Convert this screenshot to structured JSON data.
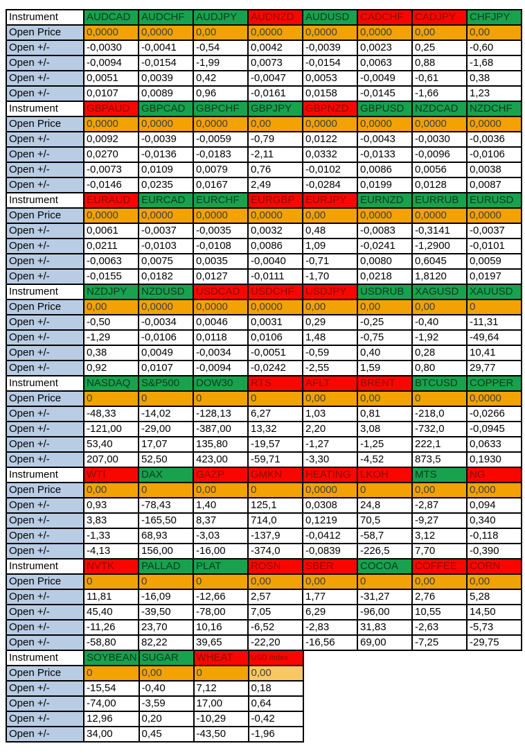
{
  "labels": {
    "instrument": "Instrument",
    "open_price": "Open Price",
    "open_change": "Open +/-"
  },
  "colors": {
    "green_bg": "#18A24D",
    "green_text": "#0C3A20",
    "red_bg": "#FA0600",
    "red_text": "#8A0E00",
    "orange_bg": "#F2A202",
    "orange_light_bg": "#FAC861",
    "label_blue_bg": "#B8CCE4",
    "border": "#000000"
  },
  "blocks": [
    {
      "headers": [
        {
          "label": "AUDCAD",
          "color": "g"
        },
        {
          "label": "AUDCHF",
          "color": "g"
        },
        {
          "label": "AUDJPY",
          "color": "g"
        },
        {
          "label": "AUDNZD",
          "color": "r"
        },
        {
          "label": "AUDUSD",
          "color": "g"
        },
        {
          "label": "CADCHF",
          "color": "r"
        },
        {
          "label": "CADJPY",
          "color": "r"
        },
        {
          "label": "CHFJPY",
          "color": "g"
        }
      ],
      "open": [
        "0,0000",
        "0,0000",
        "0,00",
        "0,0000",
        "0,0000",
        "0,0000",
        "0,00",
        "0,00"
      ],
      "open_light": [],
      "rows": [
        [
          "-0,0030",
          "-0,0041",
          "-0,54",
          "0,0042",
          "-0,0039",
          "0,0023",
          "0,25",
          "-0,60"
        ],
        [
          "-0,0094",
          "-0,0154",
          "-1,99",
          "0,0073",
          "-0,0154",
          "0,0063",
          "0,88",
          "-1,68"
        ],
        [
          "0,0051",
          "0,0039",
          "0,42",
          "-0,0047",
          "0,0053",
          "-0,0049",
          "-0,61",
          "0,38"
        ],
        [
          "0,0107",
          "0,0089",
          "0,96",
          "-0,0161",
          "0,0158",
          "-0,0145",
          "-1,66",
          "1,23"
        ]
      ]
    },
    {
      "headers": [
        {
          "label": "GBPAUD",
          "color": "r"
        },
        {
          "label": "GBPCAD",
          "color": "g"
        },
        {
          "label": "GBPCHF",
          "color": "g"
        },
        {
          "label": "GBPJPY",
          "color": "g"
        },
        {
          "label": "GBPNZD",
          "color": "r"
        },
        {
          "label": "GBPUSD",
          "color": "g"
        },
        {
          "label": "NZDCAD",
          "color": "g"
        },
        {
          "label": "NZDCHF",
          "color": "g"
        }
      ],
      "open": [
        "0,0000",
        "0,0000",
        "0,0000",
        "0,00",
        "0,0000",
        "0,0000",
        "0,0000",
        "0,0000"
      ],
      "open_light": [],
      "rows": [
        [
          "0,0092",
          "-0,0039",
          "-0,0059",
          "-0,79",
          "0,0122",
          "-0,0043",
          "-0,0030",
          "-0,0036"
        ],
        [
          "0,0270",
          "-0,0136",
          "-0,0183",
          "-2,11",
          "0,0332",
          "-0,0133",
          "-0,0096",
          "-0,0106"
        ],
        [
          "-0,0073",
          "0,0109",
          "0,0079",
          "0,76",
          "-0,0102",
          "0,0086",
          "0,0056",
          "0,0038"
        ],
        [
          "-0,0146",
          "0,0235",
          "0,0167",
          "2,49",
          "-0,0284",
          "0,0199",
          "0,0128",
          "0,0087"
        ]
      ]
    },
    {
      "headers": [
        {
          "label": "EURAUD",
          "color": "r"
        },
        {
          "label": "EURCAD",
          "color": "g"
        },
        {
          "label": "EURCHF",
          "color": "g"
        },
        {
          "label": "EURGBP",
          "color": "r"
        },
        {
          "label": "EURJPY",
          "color": "r"
        },
        {
          "label": "EURNZD",
          "color": "g"
        },
        {
          "label": "EURRUB",
          "color": "g"
        },
        {
          "label": "EURUSD",
          "color": "g"
        }
      ],
      "open": [
        "0,0000",
        "0,0000",
        "0,0000",
        "0,0000",
        "0,00",
        "0,0000",
        "0,0000",
        "0,0000"
      ],
      "open_light": [],
      "rows": [
        [
          "0,0061",
          "-0,0037",
          "-0,0035",
          "0,0032",
          "0,48",
          "-0,0083",
          "-0,3141",
          "-0,0037"
        ],
        [
          "0,0211",
          "-0,0103",
          "-0,0108",
          "0,0086",
          "1,09",
          "-0,0241",
          "-1,2900",
          "-0,0101"
        ],
        [
          "-0,0063",
          "0,0075",
          "0,0035",
          "-0,0040",
          "-0,71",
          "0,0080",
          "0,6045",
          "0,0059"
        ],
        [
          "-0,0155",
          "0,0182",
          "0,0127",
          "-0,0111",
          "-1,70",
          "0,0218",
          "1,8120",
          "0,0197"
        ]
      ]
    },
    {
      "headers": [
        {
          "label": "NZDJPY",
          "color": "g"
        },
        {
          "label": "NZDUSD",
          "color": "g"
        },
        {
          "label": "USDCAD",
          "color": "r"
        },
        {
          "label": "USDCHF",
          "color": "r"
        },
        {
          "label": "USDJPY",
          "color": "r"
        },
        {
          "label": "USDRUB",
          "color": "g"
        },
        {
          "label": "XAGUSD",
          "color": "g"
        },
        {
          "label": "XAUUSD",
          "color": "g"
        }
      ],
      "open": [
        "0,00",
        "0,0000",
        "0,0000",
        "0,0000",
        "0,00",
        "0,00",
        "0,00",
        "0"
      ],
      "open_light": [],
      "rows": [
        [
          "-0,50",
          "-0,0034",
          "0,0046",
          "0,0031",
          "0,29",
          "-0,25",
          "-0,40",
          "-11,31"
        ],
        [
          "-1,29",
          "-0,0106",
          "0,0118",
          "0,0106",
          "1,48",
          "-0,75",
          "-1,92",
          "-49,64"
        ],
        [
          "0,38",
          "0,0049",
          "-0,0034",
          "-0,0051",
          "-0,59",
          "0,40",
          "0,28",
          "10,41"
        ],
        [
          "0,92",
          "0,0107",
          "-0,0094",
          "-0,0242",
          "-2,55",
          "1,59",
          "0,80",
          "29,77"
        ]
      ]
    },
    {
      "headers": [
        {
          "label": "NASDAQ",
          "color": "g"
        },
        {
          "label": "S&P500",
          "color": "g"
        },
        {
          "label": "DOW30",
          "color": "g"
        },
        {
          "label": "RTS",
          "color": "r"
        },
        {
          "label": "AFLT",
          "color": "r"
        },
        {
          "label": "BRENT",
          "color": "r"
        },
        {
          "label": "BTCUSD",
          "color": "g"
        },
        {
          "label": "COPPER",
          "color": "g"
        }
      ],
      "open": [
        "0",
        "0",
        "0",
        "0",
        "0,00",
        "0,00",
        "0",
        "0,0000"
      ],
      "open_light": [],
      "rows": [
        [
          "-48,33",
          "-14,02",
          "-128,13",
          "6,27",
          "1,03",
          "0,81",
          "-218,0",
          "-0,0266"
        ],
        [
          "-121,00",
          "-29,00",
          "-387,00",
          "13,32",
          "2,20",
          "3,08",
          "-732,0",
          "-0,0945"
        ],
        [
          "53,40",
          "17,07",
          "135,80",
          "-19,57",
          "-1,27",
          "-1,25",
          "222,1",
          "0,0633"
        ],
        [
          "207,00",
          "52,50",
          "423,00",
          "-59,71",
          "-3,30",
          "-4,52",
          "873,5",
          "0,1930"
        ]
      ]
    },
    {
      "headers": [
        {
          "label": "WTI",
          "color": "r"
        },
        {
          "label": "DAX",
          "color": "g"
        },
        {
          "label": "GAZP",
          "color": "r"
        },
        {
          "label": "GMKN",
          "color": "r"
        },
        {
          "label": "HEATING",
          "color": "r"
        },
        {
          "label": "LKOH",
          "color": "r"
        },
        {
          "label": "MTS",
          "color": "g"
        },
        {
          "label": "NG",
          "color": "r"
        }
      ],
      "open": [
        "0,00",
        "0",
        "0,00",
        "0",
        "0,0000",
        "0",
        "0,00",
        "0,000"
      ],
      "open_light": [],
      "rows": [
        [
          "0,93",
          "-78,43",
          "1,40",
          "125,1",
          "0,0308",
          "24,8",
          "-2,87",
          "0,094"
        ],
        [
          "3,83",
          "-165,50",
          "8,37",
          "714,0",
          "0,1219",
          "70,5",
          "-9,27",
          "0,340"
        ],
        [
          "-1,33",
          "68,93",
          "-3,03",
          "-137,9",
          "-0,0412",
          "-58,7",
          "3,12",
          "-0,118"
        ],
        [
          "-4,13",
          "156,00",
          "-16,00",
          "-374,0",
          "-0,0839",
          "-226,5",
          "7,70",
          "-0,390"
        ]
      ]
    },
    {
      "headers": [
        {
          "label": "NVTK",
          "color": "r"
        },
        {
          "label": "PALLAD",
          "color": "g"
        },
        {
          "label": "PLAT",
          "color": "g"
        },
        {
          "label": "ROSN",
          "color": "r"
        },
        {
          "label": "SBER",
          "color": "r"
        },
        {
          "label": "COCOA",
          "color": "g"
        },
        {
          "label": "COFFEE",
          "color": "r"
        },
        {
          "label": "CORN",
          "color": "r"
        }
      ],
      "open": [
        "0",
        "0",
        "0",
        "0,00",
        "0,00",
        "0",
        "0,00",
        "0,00"
      ],
      "open_light": [],
      "rows": [
        [
          "11,81",
          "-16,09",
          "-12,66",
          "2,57",
          "1,77",
          "-31,27",
          "2,76",
          "5,28"
        ],
        [
          "45,40",
          "-39,50",
          "-78,00",
          "7,05",
          "6,29",
          "-96,00",
          "10,55",
          "14,50"
        ],
        [
          "-11,26",
          "23,70",
          "10,16",
          "-6,52",
          "-2,83",
          "31,83",
          "-2,63",
          "-5,73"
        ],
        [
          "-58,80",
          "82,22",
          "39,65",
          "-22,20",
          "-16,56",
          "69,00",
          "-7,25",
          "-29,75"
        ]
      ]
    },
    {
      "headers": [
        {
          "label": "SOYBEAN",
          "color": "g"
        },
        {
          "label": "SUGAR",
          "color": "g"
        },
        {
          "label": "WHEAT",
          "color": "r"
        },
        {
          "label": "USD Index",
          "color": "r",
          "small": true
        }
      ],
      "open": [
        "0",
        "0,00",
        "0",
        "0,00"
      ],
      "open_light": [
        3
      ],
      "rows": [
        [
          "-15,54",
          "-0,40",
          "7,12",
          "0,18"
        ],
        [
          "-74,00",
          "-3,59",
          "17,00",
          "0,64"
        ],
        [
          "12,96",
          "0,20",
          "-10,29",
          "-0,42"
        ],
        [
          "34,00",
          "0,45",
          "-43,50",
          "-1,96"
        ]
      ]
    }
  ]
}
